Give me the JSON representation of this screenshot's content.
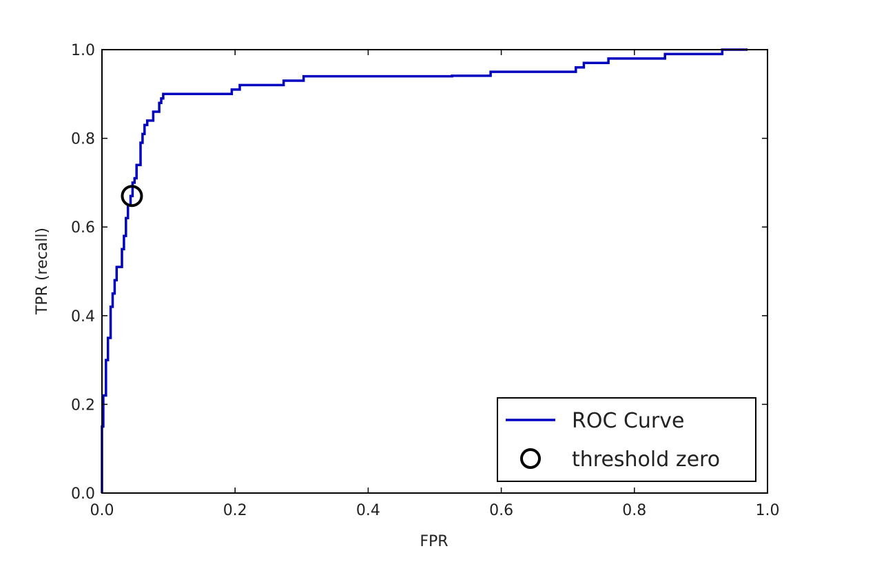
{
  "chart_data": {
    "type": "line",
    "title": "",
    "xlabel": "FPR",
    "ylabel": "TPR (recall)",
    "xlim": [
      0.0,
      1.0
    ],
    "ylim": [
      0.0,
      1.0
    ],
    "xticks": [
      "0.0",
      "0.2",
      "0.4",
      "0.6",
      "0.8",
      "1.0"
    ],
    "yticks": [
      "0.0",
      "0.2",
      "0.4",
      "0.6",
      "0.8",
      "1.0"
    ],
    "grid": false,
    "legend_position": "lower-right",
    "series": [
      {
        "name": "ROC Curve",
        "kind": "line",
        "color": "#0000bf",
        "points": [
          [
            0.0,
            0.0
          ],
          [
            0.0,
            0.15
          ],
          [
            0.002,
            0.15
          ],
          [
            0.002,
            0.22
          ],
          [
            0.006,
            0.22
          ],
          [
            0.006,
            0.3
          ],
          [
            0.009,
            0.3
          ],
          [
            0.009,
            0.35
          ],
          [
            0.013,
            0.35
          ],
          [
            0.013,
            0.42
          ],
          [
            0.016,
            0.42
          ],
          [
            0.016,
            0.45
          ],
          [
            0.019,
            0.45
          ],
          [
            0.019,
            0.48
          ],
          [
            0.022,
            0.48
          ],
          [
            0.022,
            0.51
          ],
          [
            0.03,
            0.51
          ],
          [
            0.03,
            0.55
          ],
          [
            0.033,
            0.55
          ],
          [
            0.033,
            0.58
          ],
          [
            0.036,
            0.58
          ],
          [
            0.036,
            0.62
          ],
          [
            0.039,
            0.62
          ],
          [
            0.039,
            0.65
          ],
          [
            0.043,
            0.65
          ],
          [
            0.043,
            0.67
          ],
          [
            0.046,
            0.67
          ],
          [
            0.046,
            0.7
          ],
          [
            0.049,
            0.7
          ],
          [
            0.049,
            0.71
          ],
          [
            0.052,
            0.71
          ],
          [
            0.052,
            0.74
          ],
          [
            0.058,
            0.74
          ],
          [
            0.058,
            0.79
          ],
          [
            0.061,
            0.79
          ],
          [
            0.061,
            0.81
          ],
          [
            0.064,
            0.81
          ],
          [
            0.064,
            0.83
          ],
          [
            0.068,
            0.83
          ],
          [
            0.068,
            0.84
          ],
          [
            0.077,
            0.84
          ],
          [
            0.077,
            0.86
          ],
          [
            0.086,
            0.86
          ],
          [
            0.086,
            0.88
          ],
          [
            0.089,
            0.88
          ],
          [
            0.089,
            0.89
          ],
          [
            0.092,
            0.89
          ],
          [
            0.092,
            0.9
          ],
          [
            0.195,
            0.9
          ],
          [
            0.195,
            0.91
          ],
          [
            0.207,
            0.91
          ],
          [
            0.207,
            0.92
          ],
          [
            0.273,
            0.92
          ],
          [
            0.273,
            0.93
          ],
          [
            0.303,
            0.93
          ],
          [
            0.303,
            0.94
          ],
          [
            0.526,
            0.94
          ],
          [
            0.526,
            0.941
          ],
          [
            0.584,
            0.941
          ],
          [
            0.584,
            0.95
          ],
          [
            0.712,
            0.95
          ],
          [
            0.712,
            0.96
          ],
          [
            0.724,
            0.96
          ],
          [
            0.724,
            0.97
          ],
          [
            0.761,
            0.97
          ],
          [
            0.761,
            0.98
          ],
          [
            0.846,
            0.98
          ],
          [
            0.846,
            0.99
          ],
          [
            0.932,
            0.99
          ],
          [
            0.932,
            1.0
          ],
          [
            0.97,
            1.0
          ]
        ]
      },
      {
        "name": "threshold zero",
        "kind": "marker",
        "marker": "open-circle",
        "color": "#000000",
        "points": [
          [
            0.045,
            0.67
          ]
        ]
      }
    ]
  }
}
